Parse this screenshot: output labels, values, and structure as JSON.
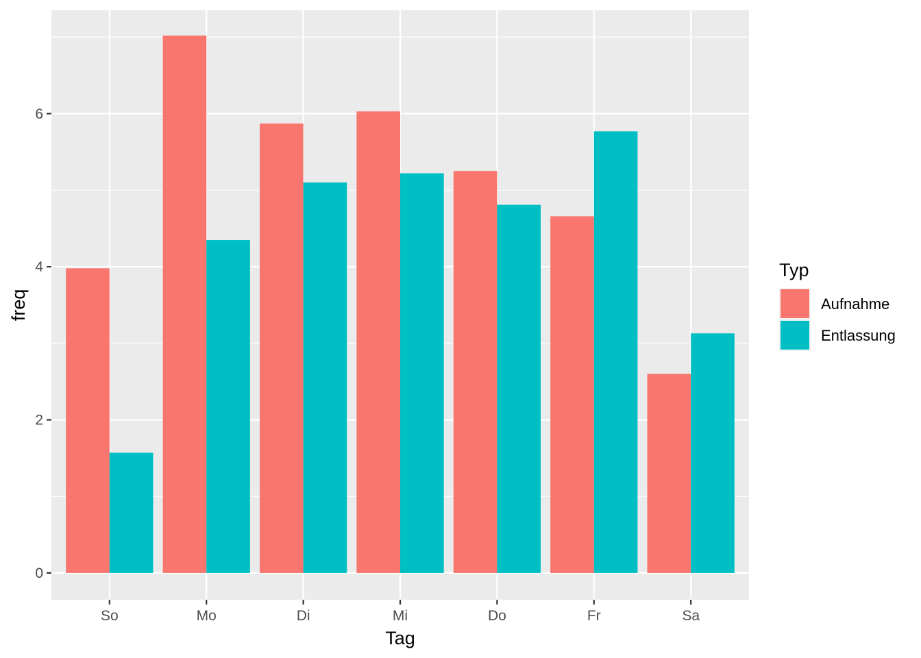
{
  "chart_data": {
    "type": "bar",
    "xlabel": "Tag",
    "ylabel": "freq",
    "categories": [
      "So",
      "Mo",
      "Di",
      "Mi",
      "Do",
      "Fr",
      "Sa"
    ],
    "series": [
      {
        "name": "Aufnahme",
        "color": "#F8766D",
        "values": [
          3.98,
          7.02,
          5.87,
          6.03,
          5.25,
          4.66,
          2.6
        ]
      },
      {
        "name": "Entlassung",
        "color": "#00BFC4",
        "values": [
          1.57,
          4.35,
          5.1,
          5.22,
          4.81,
          5.77,
          3.13
        ]
      }
    ],
    "ylim": [
      -0.35,
      7.35
    ],
    "y_ticks": [
      0,
      2,
      4,
      6
    ],
    "y_tick_labels": [
      "0",
      "2",
      "4",
      "6"
    ],
    "grid": true,
    "panel_background": "#EBEBEB",
    "legend": {
      "title": "Typ",
      "position": "right"
    }
  }
}
